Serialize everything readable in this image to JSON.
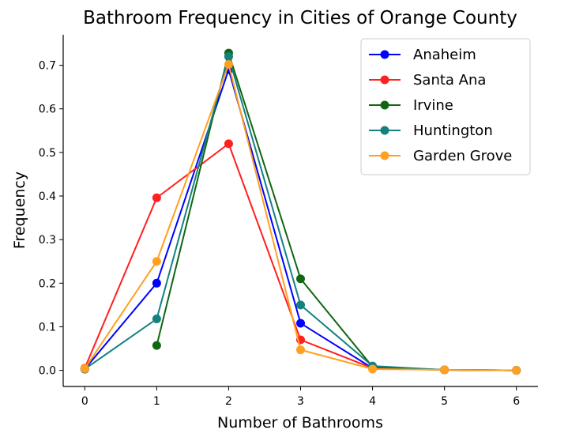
{
  "chart_data": {
    "type": "line",
    "title": "Bathroom Frequency in Cities of Orange County",
    "xlabel": "Number of Bathrooms",
    "ylabel": "Frequency",
    "xlim": [
      -0.3,
      6.3
    ],
    "ylim": [
      -0.037,
      0.77
    ],
    "xticks": [
      0,
      1,
      2,
      3,
      4,
      5,
      6
    ],
    "yticks": [
      0.0,
      0.1,
      0.2,
      0.3,
      0.4,
      0.5,
      0.6,
      0.7
    ],
    "grid": false,
    "legend_position": "top-right",
    "series": [
      {
        "name": "Anaheim",
        "color": "#0000ff",
        "x": [
          0,
          1,
          2,
          3,
          4,
          5,
          6
        ],
        "y": [
          0.003,
          0.2,
          0.69,
          0.108,
          0.005,
          0.001,
          0.0
        ]
      },
      {
        "name": "Santa Ana",
        "color": "#ff2020",
        "x": [
          0,
          1,
          2,
          3,
          4,
          5,
          6
        ],
        "y": [
          0.005,
          0.396,
          0.52,
          0.07,
          0.005,
          0.001,
          0.0
        ]
      },
      {
        "name": "Irvine",
        "color": "#116611",
        "x": [
          1,
          2,
          3,
          4,
          5,
          6
        ],
        "y": [
          0.057,
          0.728,
          0.21,
          0.008,
          0.001,
          0.0
        ]
      },
      {
        "name": "Huntington",
        "color": "#158080",
        "x": [
          0,
          1,
          2,
          3,
          4,
          5,
          6
        ],
        "y": [
          0.003,
          0.118,
          0.72,
          0.15,
          0.01,
          0.001,
          0.0
        ]
      },
      {
        "name": "Garden Grove",
        "color": "#ffa020",
        "x": [
          0,
          1,
          2,
          3,
          4,
          5,
          6
        ],
        "y": [
          0.004,
          0.25,
          0.702,
          0.047,
          0.003,
          0.001,
          0.0
        ]
      }
    ]
  }
}
